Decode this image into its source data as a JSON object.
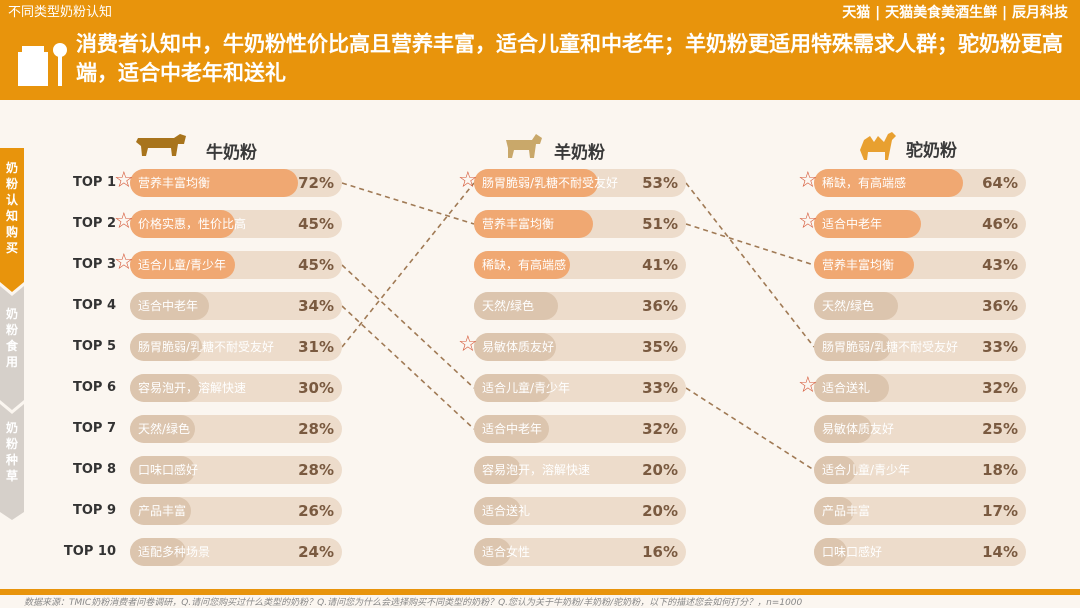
{
  "top_tag": "不同类型奶粉认知",
  "brands": "天猫 | 天猫美食美酒生鲜 | 辰月科技",
  "title": "消费者认知中，牛奶粉性价比高且营养丰富，适合儿童和中老年；羊奶粉更适用特殊需求人群；驼奶粉更高端，适合中老年和送礼",
  "side_tabs": [
    "奶粉认知购买",
    "奶粉食用",
    "奶粉种草"
  ],
  "colors": {
    "accent": "#e8940c",
    "fill_dark": "#f0a872",
    "fill_light": "#dcc5ae",
    "track": "#eddccb",
    "star": "#d65a3a"
  },
  "rank_labels": [
    "TOP 1",
    "TOP 2",
    "TOP 3",
    "TOP 4",
    "TOP 5",
    "TOP 6",
    "TOP 7",
    "TOP 8",
    "TOP 9",
    "TOP 10"
  ],
  "columns": [
    {
      "name": "牛奶粉",
      "icon": "cow-icon",
      "items": [
        {
          "label": "营养丰富均衡",
          "value": 72,
          "star": true
        },
        {
          "label": "价格实惠，性价比高",
          "value": 45,
          "star": true
        },
        {
          "label": "适合儿童/青少年",
          "value": 45,
          "star": true
        },
        {
          "label": "适合中老年",
          "value": 34,
          "star": false
        },
        {
          "label": "肠胃脆弱/乳糖不耐受友好",
          "value": 31,
          "star": false
        },
        {
          "label": "容易泡开，溶解快速",
          "value": 30,
          "star": false
        },
        {
          "label": "天然/绿色",
          "value": 28,
          "star": false
        },
        {
          "label": "口味口感好",
          "value": 28,
          "star": false
        },
        {
          "label": "产品丰富",
          "value": 26,
          "star": false
        },
        {
          "label": "适配多种场景",
          "value": 24,
          "star": false
        }
      ]
    },
    {
      "name": "羊奶粉",
      "icon": "goat-icon",
      "items": [
        {
          "label": "肠胃脆弱/乳糖不耐受友好",
          "value": 53,
          "star": true
        },
        {
          "label": "营养丰富均衡",
          "value": 51,
          "star": false
        },
        {
          "label": "稀缺，有高端感",
          "value": 41,
          "star": false
        },
        {
          "label": "天然/绿色",
          "value": 36,
          "star": false
        },
        {
          "label": "易敏体质友好",
          "value": 35,
          "star": true
        },
        {
          "label": "适合儿童/青少年",
          "value": 33,
          "star": false
        },
        {
          "label": "适合中老年",
          "value": 32,
          "star": false
        },
        {
          "label": "容易泡开，溶解快速",
          "value": 20,
          "star": false
        },
        {
          "label": "适合送礼",
          "value": 20,
          "star": false
        },
        {
          "label": "适合女性",
          "value": 16,
          "star": false
        }
      ]
    },
    {
      "name": "驼奶粉",
      "icon": "camel-icon",
      "items": [
        {
          "label": "稀缺，有高端感",
          "value": 64,
          "star": true
        },
        {
          "label": "适合中老年",
          "value": 46,
          "star": true
        },
        {
          "label": "营养丰富均衡",
          "value": 43,
          "star": false
        },
        {
          "label": "天然/绿色",
          "value": 36,
          "star": false
        },
        {
          "label": "肠胃脆弱/乳糖不耐受友好",
          "value": 33,
          "star": false
        },
        {
          "label": "适合送礼",
          "value": 32,
          "star": true
        },
        {
          "label": "易敏体质友好",
          "value": 25,
          "star": false
        },
        {
          "label": "适合儿童/青少年",
          "value": 18,
          "star": false
        },
        {
          "label": "产品丰富",
          "value": 17,
          "star": false
        },
        {
          "label": "口味口感好",
          "value": 14,
          "star": false
        }
      ]
    }
  ],
  "source": "数据来源：TMIC奶粉消费者问卷调研，Q.请问您购买过什么类型的奶粉？Q.请问您为什么会选择购买不同类型的奶粉？Q.您认为关于牛奶粉/羊奶粉/驼奶粉，以下的描述您会如何打分？，n=1000"
}
